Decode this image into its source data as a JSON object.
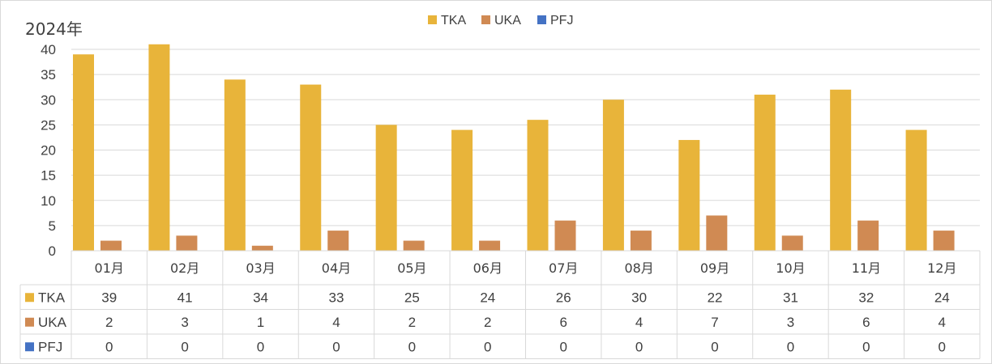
{
  "chart_data": {
    "type": "bar",
    "title": "2024年",
    "categories": [
      "01月",
      "02月",
      "03月",
      "04月",
      "05月",
      "06月",
      "07月",
      "08月",
      "09月",
      "10月",
      "11月",
      "12月"
    ],
    "series": [
      {
        "name": "TKA",
        "color": "#e8b43a",
        "values": [
          39,
          41,
          34,
          33,
          25,
          24,
          26,
          30,
          22,
          31,
          32,
          24
        ]
      },
      {
        "name": "UKA",
        "color": "#d08a53",
        "values": [
          2,
          3,
          1,
          4,
          2,
          2,
          6,
          4,
          7,
          3,
          6,
          4
        ]
      },
      {
        "name": "PFJ",
        "color": "#4472c4",
        "values": [
          0,
          0,
          0,
          0,
          0,
          0,
          0,
          0,
          0,
          0,
          0,
          0
        ]
      }
    ],
    "ylim": [
      0,
      40
    ],
    "yticks": [
      0,
      5,
      10,
      15,
      20,
      25,
      30,
      35,
      40
    ],
    "grid": true,
    "legend_position": "top-center",
    "data_table": true
  }
}
